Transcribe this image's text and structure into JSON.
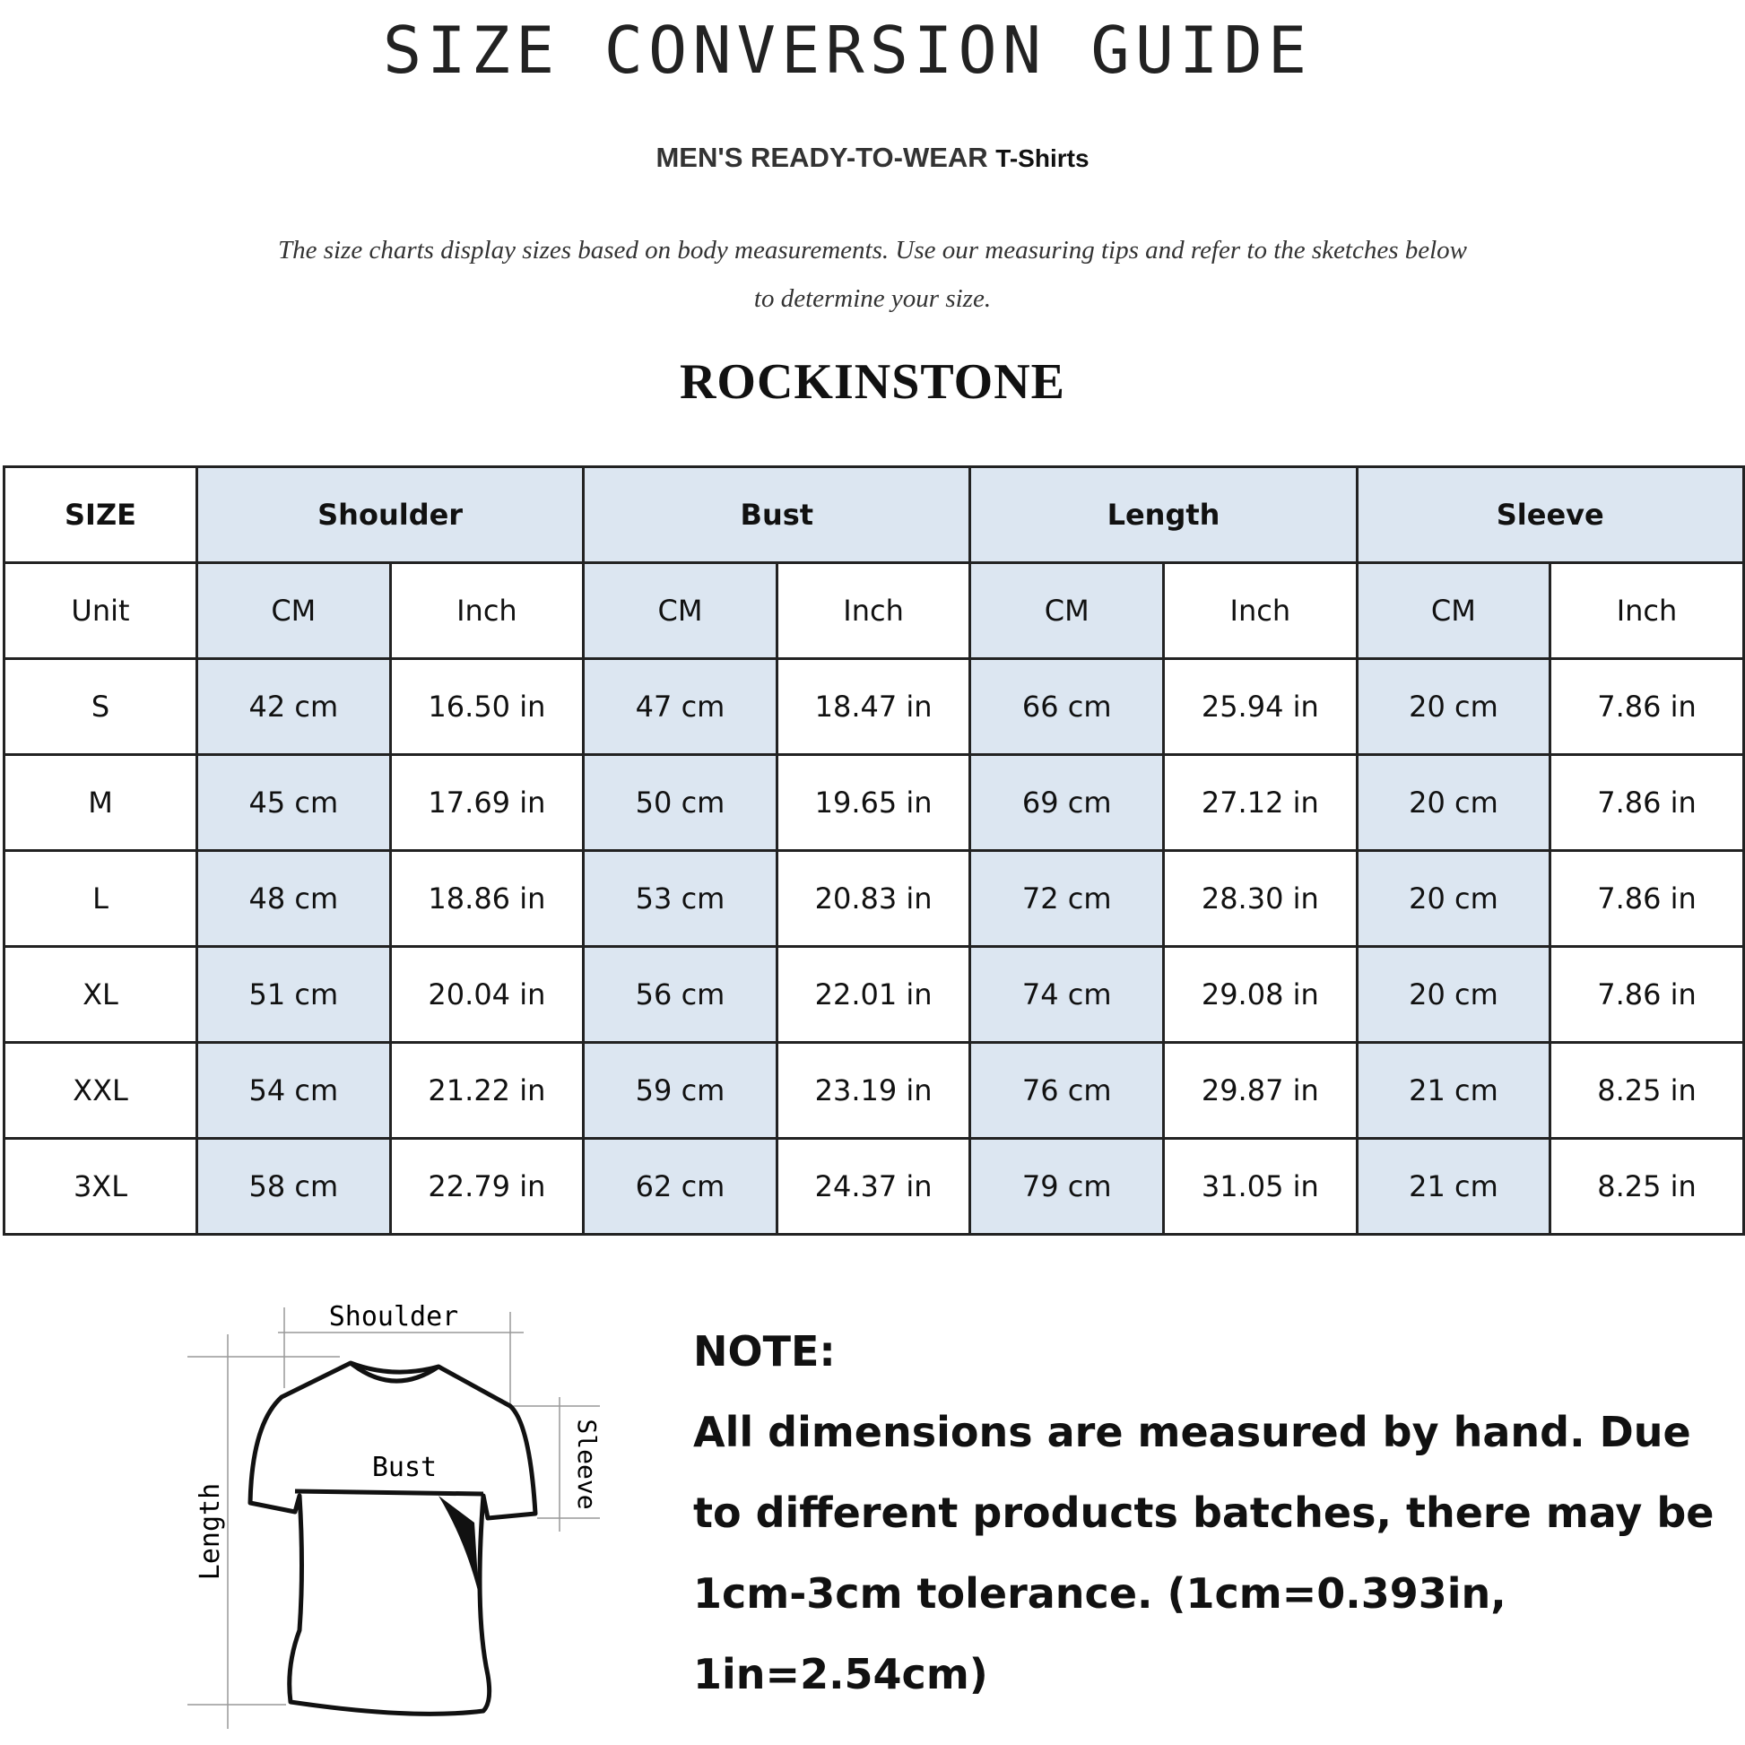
{
  "header": {
    "title": "SIZE CONVERSION GUIDE",
    "subtitle_main": "MEN'S READY-TO-WEAR",
    "subtitle_small": "T-Shirts",
    "description": "The size charts display sizes based on body measurements. Use our measuring tips and refer to the sketches below to determine your size.",
    "watermark": "ROCKINSTONE",
    "brand": "ROCKINSTONE"
  },
  "colors": {
    "header_fill": "#dce6f1",
    "border": "#222222"
  },
  "table": {
    "size_label": "SIZE",
    "unit_label": "Unit",
    "groups": [
      "Shoulder",
      "Bust",
      "Length",
      "Sleeve"
    ],
    "units": [
      "CM",
      "Inch"
    ],
    "rows": [
      {
        "size": "S",
        "values": [
          "42 cm",
          "16.50 in",
          "47 cm",
          "18.47  in",
          "66 cm",
          "25.94  in",
          "20 cm",
          "7.86  in"
        ]
      },
      {
        "size": "M",
        "values": [
          "45 cm",
          "17.69  in",
          "50 cm",
          "19.65  in",
          "69 cm",
          "27.12  in",
          "20 cm",
          "7.86  in"
        ]
      },
      {
        "size": "L",
        "values": [
          "48 cm",
          "18.86  in",
          "53 cm",
          "20.83  in",
          "72 cm",
          "28.30  in",
          "20 cm",
          "7.86  in"
        ]
      },
      {
        "size": "XL",
        "values": [
          "51 cm",
          "20.04  in",
          "56 cm",
          "22.01  in",
          "74 cm",
          "29.08  in",
          "20 cm",
          "7.86  in"
        ]
      },
      {
        "size": "XXL",
        "values": [
          "54 cm",
          "21.22  in",
          "59 cm",
          "23.19  in",
          "76 cm",
          "29.87  in",
          "21 cm",
          "8.25  in"
        ]
      },
      {
        "size": "3XL",
        "values": [
          "58 cm",
          "22.79  in",
          "62 cm",
          "24.37  in",
          "79 cm",
          "31.05  in",
          "21 cm",
          "8.25  in"
        ]
      }
    ]
  },
  "sketch": {
    "shoulder": "Shoulder",
    "bust": "Bust",
    "sleeve": "Sleeve",
    "length": "Length"
  },
  "note": {
    "heading": "NOTE:",
    "body": "All dimensions are measured by hand. Due to different products batches, there may be 1cm-3cm tolerance. (1cm=0.393in, 1in=2.54cm)"
  }
}
